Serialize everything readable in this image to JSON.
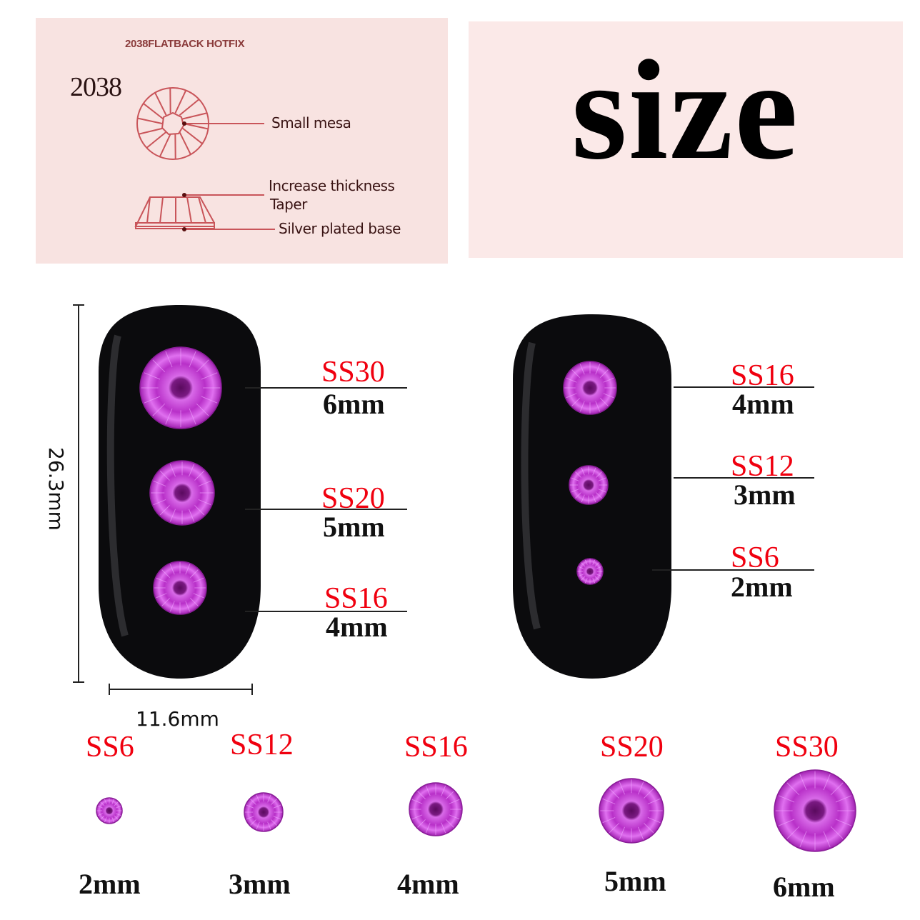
{
  "diagram": {
    "title": "2038FLATBACK HOTFIX",
    "model": "2038",
    "labels": {
      "small_mesa": "Small mesa",
      "increase_thickness": "Increase thickness",
      "taper": "Taper",
      "silver_base": "Silver plated base"
    }
  },
  "heading": "size",
  "dimensions": {
    "height": "26.3mm",
    "width": "11.6mm"
  },
  "left_nail": [
    {
      "code": "SS30",
      "size": "6mm"
    },
    {
      "code": "SS20",
      "size": "5mm"
    },
    {
      "code": "SS16",
      "size": "4mm"
    }
  ],
  "right_nail": [
    {
      "code": "SS16",
      "size": "4mm"
    },
    {
      "code": "SS12",
      "size": "3mm"
    },
    {
      "code": "SS6",
      "size": "2mm"
    }
  ],
  "bottom_row": [
    {
      "code": "SS6",
      "size": "2mm"
    },
    {
      "code": "SS12",
      "size": "3mm"
    },
    {
      "code": "SS16",
      "size": "4mm"
    },
    {
      "code": "SS20",
      "size": "5mm"
    },
    {
      "code": "SS30",
      "size": "6mm"
    }
  ],
  "colors": {
    "code_label": "#f0000f",
    "gem": "#c43cd8",
    "nail": "#0b0b0d",
    "panel": "#f8e3e1"
  }
}
